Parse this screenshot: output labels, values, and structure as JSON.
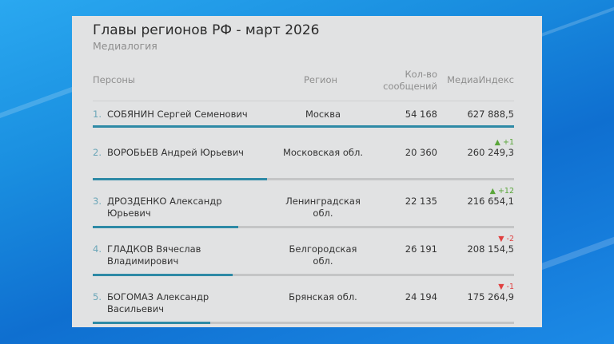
{
  "title": "Главы регионов РФ - март 2026",
  "subtitle": "Медиалогия",
  "headers": {
    "persons": "Персоны",
    "region": "Регион",
    "count_line1": "Кол-во",
    "count_line2": "сообщений",
    "index": "МедиаИндекс"
  },
  "colors": {
    "bar": "#2e8aa6",
    "up": "#5aa63a",
    "down": "#e04040"
  },
  "rows": [
    {
      "num": "1.",
      "name": "СОБЯНИН Сергей Семенович",
      "region": "Москва",
      "count": "54 168",
      "index": "627 888,5",
      "change": "",
      "dir": "",
      "fill": 1.0
    },
    {
      "num": "2.",
      "name": "ВОРОБЬЕВ Андрей Юрьевич",
      "region": "Московская обл.",
      "count": "20 360",
      "index": "260 249,3",
      "change": "▲ +1",
      "dir": "up",
      "fill": 0.414
    },
    {
      "num": "3.",
      "name": "ДРОЗДЕНКО Александр Юрьевич",
      "region": "Ленинградская обл.",
      "count": "22 135",
      "index": "216 654,1",
      "change": "▲ +12",
      "dir": "up",
      "fill": 0.345
    },
    {
      "num": "4.",
      "name": "ГЛАДКОВ Вячеслав Владимирович",
      "region": "Белгородская обл.",
      "count": "26 191",
      "index": "208 154,5",
      "change": "▼ -2",
      "dir": "down",
      "fill": 0.332
    },
    {
      "num": "5.",
      "name": "БОГОМАЗ Александр Васильевич",
      "region": "Брянская обл.",
      "count": "24 194",
      "index": "175 264,9",
      "change": "▼ -1",
      "dir": "down",
      "fill": 0.279
    }
  ]
}
